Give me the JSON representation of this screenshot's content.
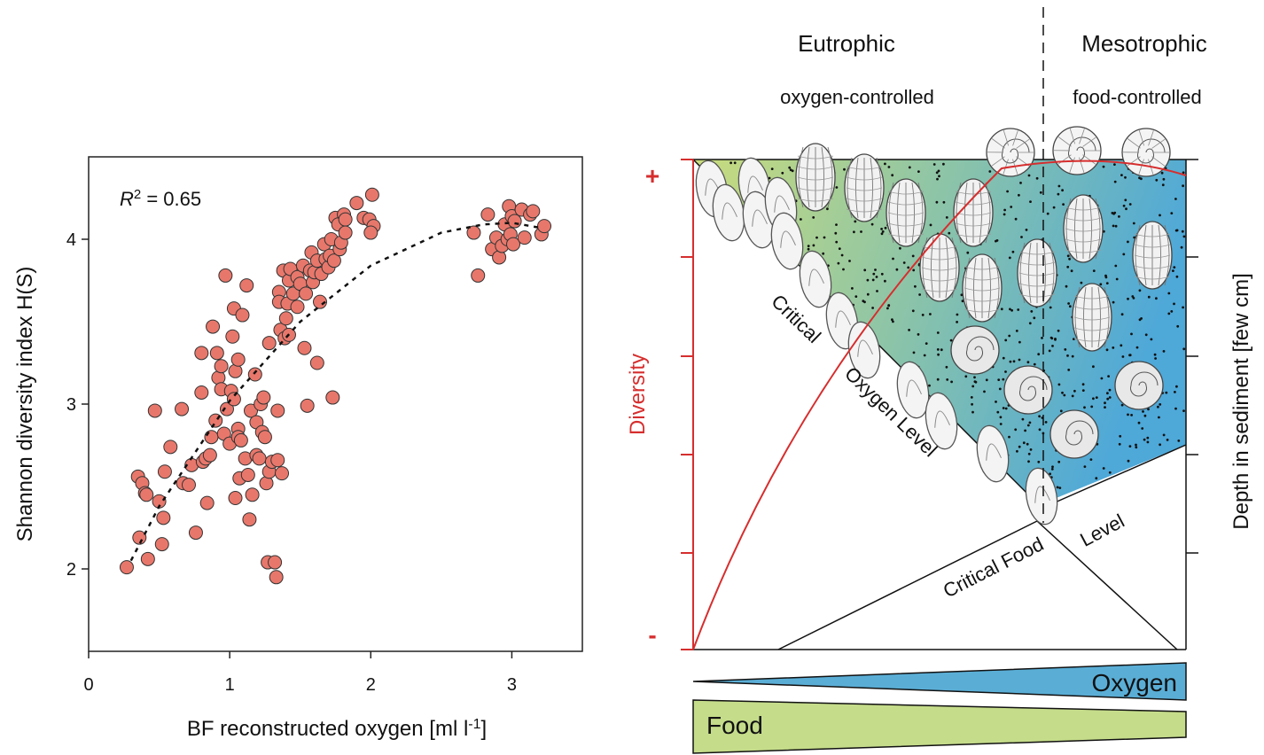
{
  "chart_data": {
    "type": "scatter",
    "x": [
      0.27,
      0.36,
      0.42,
      0.35,
      0.38,
      0.4,
      0.41,
      0.47,
      0.5,
      0.53,
      0.54,
      0.52,
      0.58,
      0.66,
      0.67,
      0.71,
      0.73,
      0.76,
      0.8,
      0.8,
      0.81,
      0.83,
      0.84,
      0.86,
      0.87,
      0.88,
      0.9,
      0.91,
      0.92,
      0.94,
      0.94,
      0.96,
      0.97,
      0.98,
      1.0,
      1.01,
      1.02,
      1.03,
      1.03,
      1.04,
      1.06,
      1.06,
      1.06,
      1.04,
      1.07,
      1.08,
      1.09,
      1.11,
      1.12,
      1.13,
      1.14,
      1.15,
      1.16,
      1.18,
      1.19,
      1.19,
      1.21,
      1.22,
      1.23,
      1.24,
      1.25,
      1.26,
      1.27,
      1.28,
      1.28,
      1.3,
      1.32,
      1.33,
      1.34,
      1.34,
      1.35,
      1.35,
      1.37,
      1.36,
      1.38,
      1.39,
      1.4,
      1.41,
      1.42,
      1.42,
      1.43,
      1.45,
      1.48,
      1.48,
      1.5,
      1.52,
      1.53,
      1.54,
      1.55,
      1.57,
      1.58,
      1.59,
      1.6,
      1.62,
      1.62,
      1.64,
      1.65,
      1.67,
      1.68,
      1.7,
      1.71,
      1.72,
      1.73,
      1.74,
      1.75,
      1.77,
      1.78,
      1.79,
      1.81,
      1.82,
      1.82,
      1.9,
      1.95,
      1.99,
      2.01,
      2.02,
      2.0,
      2.73,
      2.76,
      2.83,
      2.86,
      2.89,
      2.91,
      2.93,
      2.95,
      2.97,
      2.98,
      2.99,
      3.0,
      3.01,
      3.02,
      3.07,
      3.09,
      3.13,
      3.15,
      3.21,
      3.23
    ],
    "values": [
      2.01,
      2.19,
      2.06,
      2.56,
      2.52,
      2.46,
      2.45,
      2.96,
      2.41,
      2.31,
      2.59,
      2.15,
      2.74,
      2.97,
      2.52,
      2.51,
      2.63,
      2.22,
      3.31,
      3.07,
      2.65,
      2.67,
      2.4,
      2.69,
      2.8,
      3.47,
      2.9,
      3.31,
      3.16,
      3.23,
      3.09,
      2.82,
      3.78,
      2.97,
      2.76,
      3.08,
      3.41,
      3.58,
      3.03,
      3.2,
      3.27,
      2.85,
      2.8,
      2.43,
      2.55,
      2.78,
      3.54,
      2.67,
      3.72,
      2.57,
      2.3,
      2.96,
      2.45,
      3.18,
      2.69,
      2.89,
      2.67,
      3.0,
      2.83,
      3.04,
      2.8,
      2.52,
      2.04,
      2.59,
      3.37,
      2.65,
      2.04,
      1.95,
      2.96,
      2.66,
      3.68,
      3.62,
      2.58,
      3.45,
      3.81,
      3.4,
      3.52,
      3.61,
      3.75,
      3.42,
      3.82,
      3.67,
      3.77,
      3.59,
      3.73,
      3.84,
      3.34,
      3.67,
      2.99,
      3.81,
      3.92,
      3.74,
      3.8,
      3.25,
      3.87,
      3.62,
      3.79,
      3.97,
      3.88,
      3.83,
      3.9,
      4.0,
      3.04,
      3.87,
      4.13,
      4.09,
      3.94,
      3.98,
      4.15,
      4.12,
      4.04,
      4.22,
      4.13,
      4.12,
      4.27,
      4.08,
      4.04,
      4.04,
      3.78,
      4.15,
      3.94,
      4.01,
      3.89,
      3.96,
      4.09,
      4.0,
      4.2,
      4.03,
      4.14,
      3.97,
      4.11,
      4.18,
      4.01,
      4.15,
      4.17,
      4.03,
      4.08
    ],
    "color": "#e8776b",
    "fit": {
      "x": [
        0.3,
        0.5,
        1.0,
        1.5,
        2.0,
        2.5,
        2.8,
        3.0,
        3.2
      ],
      "values": [
        2.05,
        2.38,
        3.02,
        3.5,
        3.84,
        4.04,
        4.09,
        4.1,
        4.07
      ]
    },
    "annotation": {
      "r": "R",
      "sup": "2",
      "rest": " = 0.65"
    },
    "xlabel": {
      "main": "BF reconstructed oxygen [ml l",
      "sup": "-1",
      "end": "]"
    },
    "ylabel": "Shannon diversity index H(S)",
    "xlim": [
      0,
      3.5
    ],
    "ylim": [
      1.5,
      4.5
    ],
    "xticks": [
      0,
      1,
      2,
      3
    ],
    "yticks": [
      2,
      3,
      4
    ]
  },
  "diagram": {
    "eutrophic": "Eutrophic",
    "mesotrophic": "Mesotrophic",
    "oxygen_controlled": "oxygen-controlled",
    "food_controlled": "food-controlled",
    "plus": "+",
    "minus": "-",
    "diversity": "Diversity",
    "depth": "Depth in sediment [few cm]",
    "critical": "Critical",
    "oxygen_level": "Oxygen Level",
    "critical_food": "Critical Food",
    "level": "Level",
    "oxygen": "Oxygen",
    "food": "Food"
  }
}
